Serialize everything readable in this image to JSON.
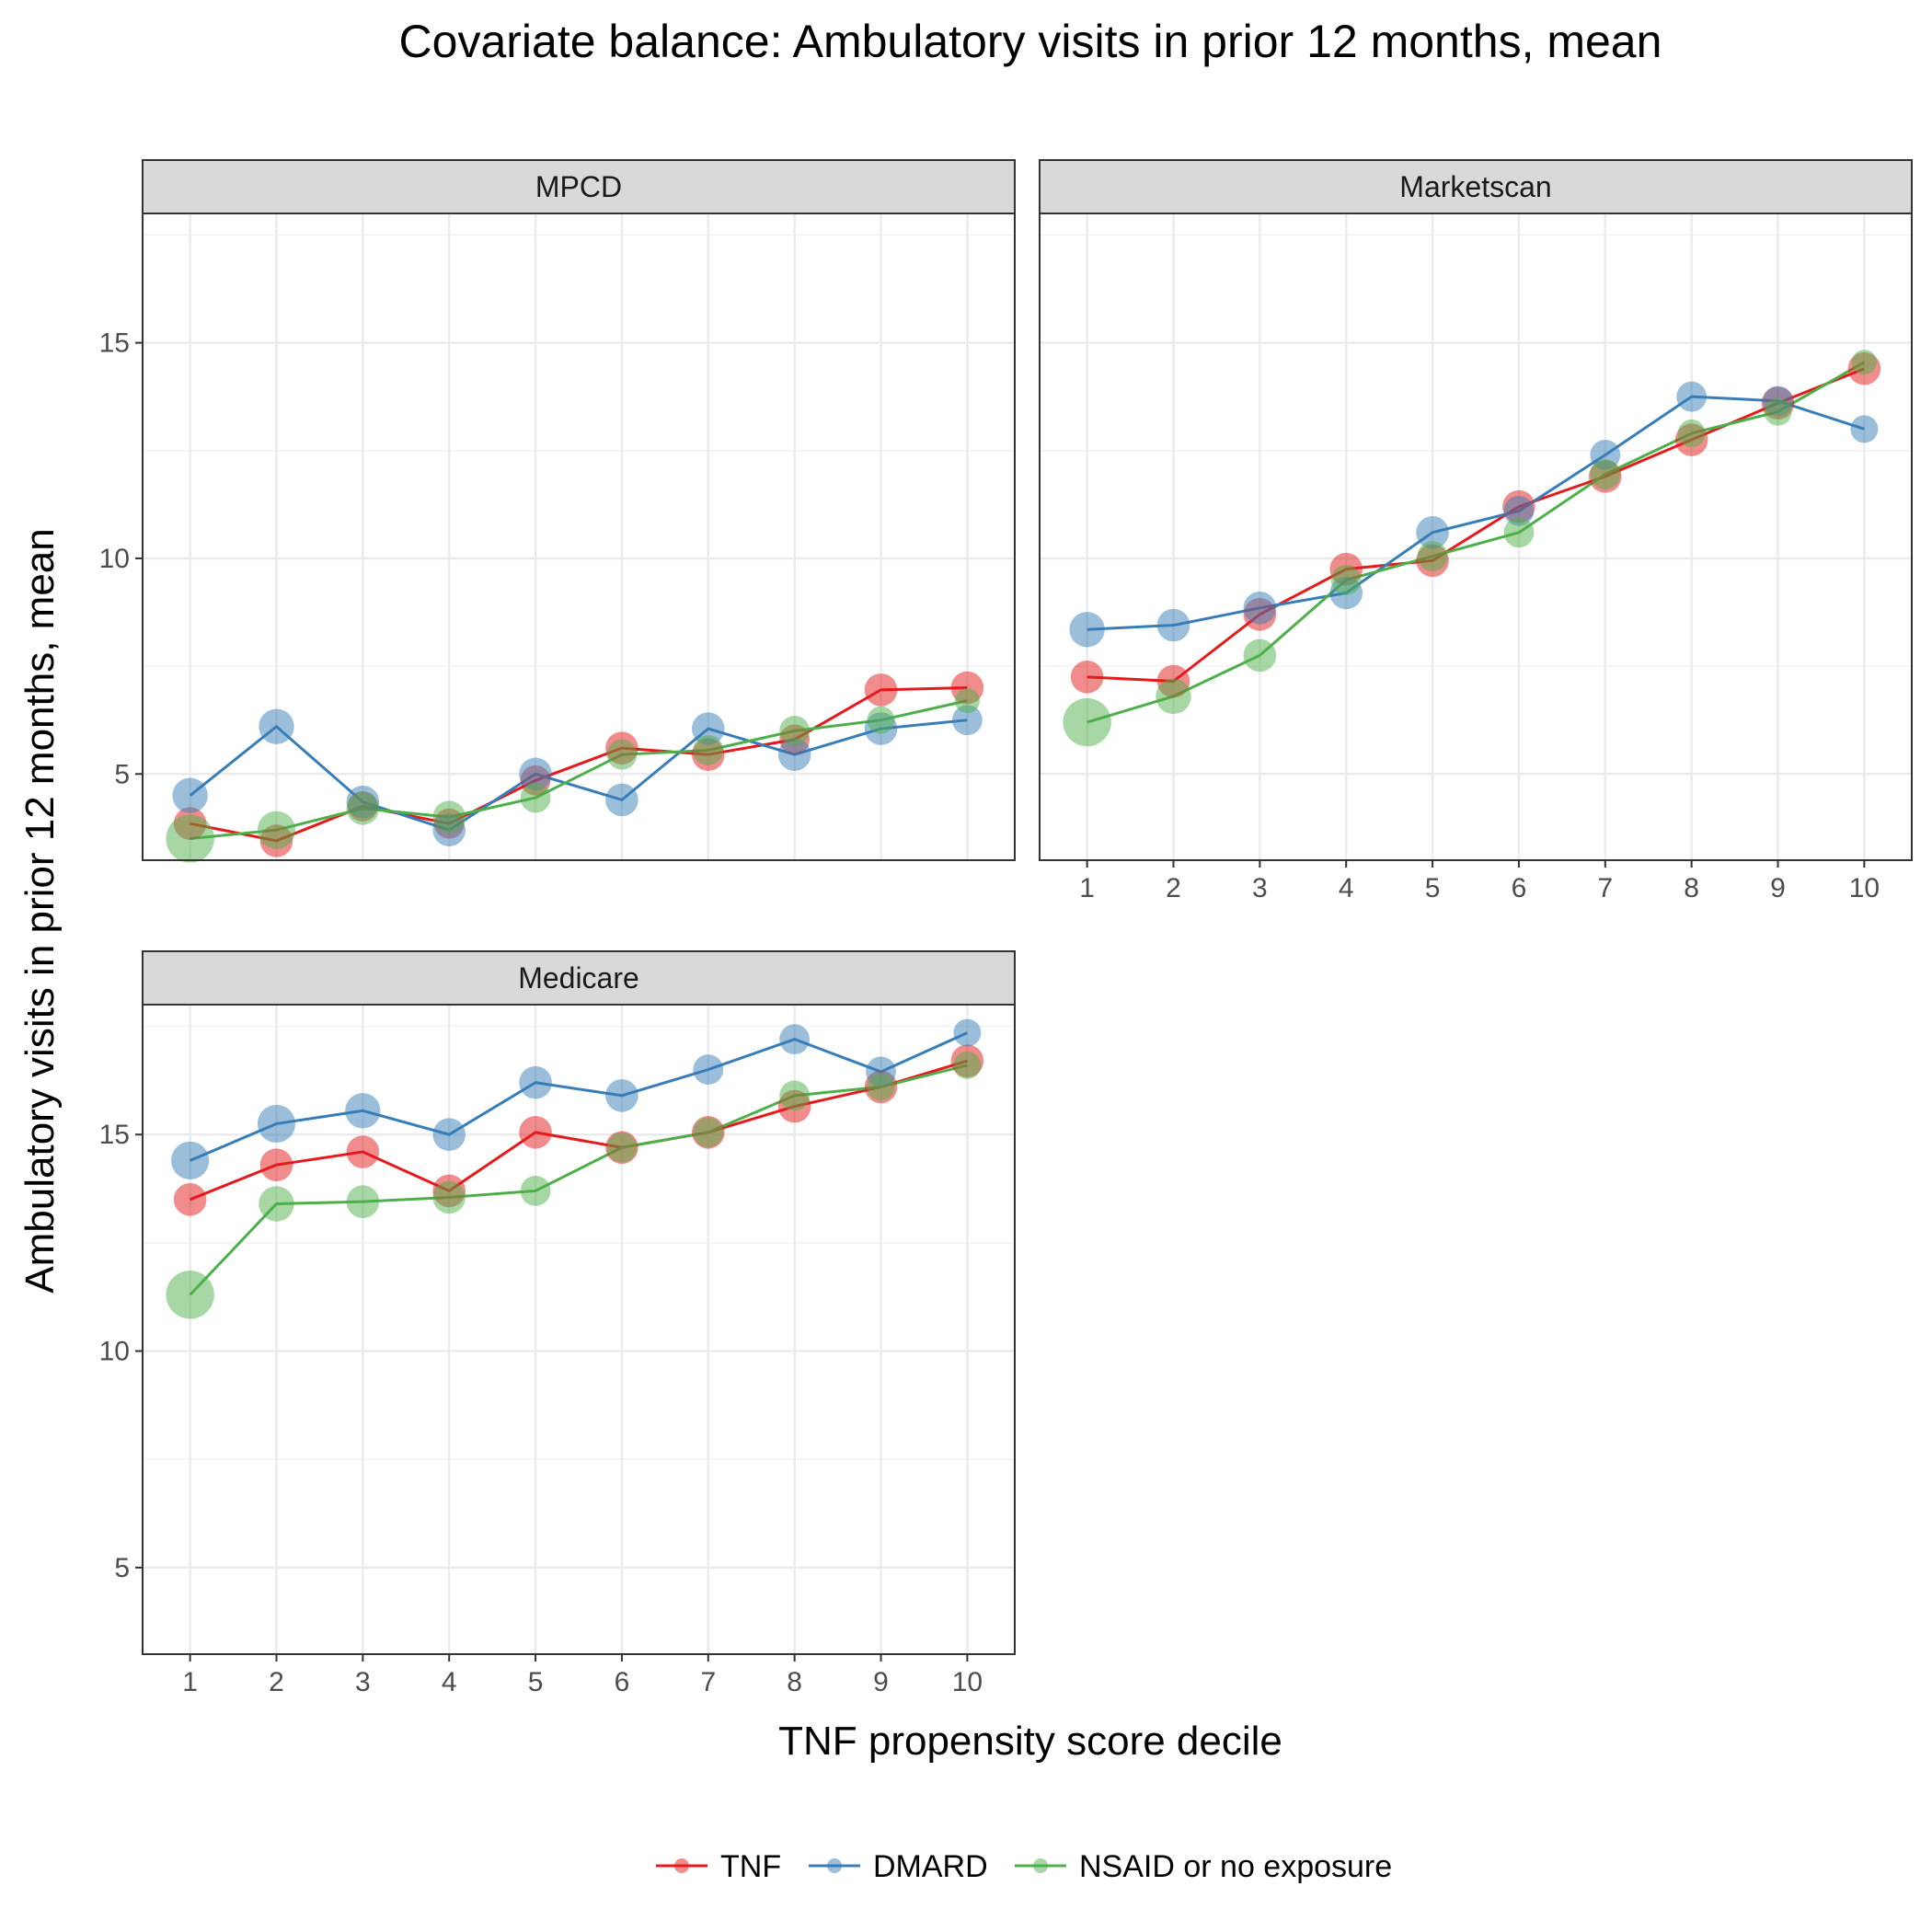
{
  "chart_data": {
    "type": "line",
    "title": "Covariate balance: Ambulatory visits in prior 12 months, mean",
    "xlabel": "TNF propensity score decile",
    "ylabel": "Ambulatory visits in prior 12 months, mean",
    "x": [
      1,
      2,
      3,
      4,
      5,
      6,
      7,
      8,
      9,
      10
    ],
    "xticks": [
      "1",
      "2",
      "3",
      "4",
      "5",
      "6",
      "7",
      "8",
      "9",
      "10"
    ],
    "yticks": [
      "5",
      "10",
      "15"
    ],
    "ylim": [
      3,
      18
    ],
    "grid": true,
    "legend_position": "bottom",
    "colors": {
      "TNF": "#e41a1c",
      "DMARD": "#377eb8",
      "NSAID or no exposure": "#4daf4a"
    },
    "legend": [
      "TNF",
      "DMARD",
      "NSAID or no exposure"
    ],
    "panels": [
      {
        "name": "MPCD",
        "series": [
          {
            "name": "TNF",
            "values": [
              3.85,
              3.45,
              4.25,
              3.85,
              4.85,
              5.6,
              5.45,
              5.8,
              6.95,
              7.0
            ],
            "sizes": [
              0.7,
              0.7,
              0.6,
              0.6,
              0.6,
              0.7,
              0.7,
              0.6,
              0.7,
              0.7
            ]
          },
          {
            "name": "DMARD",
            "values": [
              4.5,
              6.1,
              4.35,
              3.7,
              5.0,
              4.4,
              6.05,
              5.45,
              6.05,
              6.25
            ],
            "sizes": [
              0.8,
              0.8,
              0.7,
              0.7,
              0.7,
              0.7,
              0.7,
              0.7,
              0.7,
              0.6
            ]
          },
          {
            "name": "NSAID or no exposure",
            "values": [
              3.5,
              3.7,
              4.2,
              4.0,
              4.45,
              5.45,
              5.55,
              6.0,
              6.25,
              6.7
            ],
            "sizes": [
              1.3,
              0.9,
              0.7,
              0.7,
              0.6,
              0.6,
              0.6,
              0.6,
              0.5,
              0.4
            ]
          }
        ]
      },
      {
        "name": "Marketscan",
        "series": [
          {
            "name": "TNF",
            "values": [
              7.25,
              7.15,
              8.7,
              9.75,
              9.95,
              11.2,
              11.9,
              12.75,
              13.6,
              14.4
            ],
            "sizes": [
              0.7,
              0.7,
              0.7,
              0.7,
              0.7,
              0.7,
              0.7,
              0.7,
              0.7,
              0.7
            ]
          },
          {
            "name": "DMARD",
            "values": [
              8.35,
              8.45,
              8.85,
              9.2,
              10.6,
              11.1,
              12.4,
              13.75,
              13.65,
              13.0
            ],
            "sizes": [
              0.8,
              0.7,
              0.7,
              0.7,
              0.7,
              0.6,
              0.6,
              0.6,
              0.6,
              0.5
            ]
          },
          {
            "name": "NSAID or no exposure",
            "values": [
              6.2,
              6.8,
              7.75,
              9.5,
              10.05,
              10.6,
              11.95,
              12.9,
              13.4,
              14.55
            ],
            "sizes": [
              1.3,
              0.8,
              0.7,
              0.6,
              0.6,
              0.6,
              0.6,
              0.5,
              0.5,
              0.4
            ]
          }
        ]
      },
      {
        "name": "Medicare",
        "series": [
          {
            "name": "TNF",
            "values": [
              13.5,
              14.3,
              14.6,
              13.7,
              15.05,
              14.7,
              15.05,
              15.65,
              16.1,
              16.7
            ],
            "sizes": [
              0.7,
              0.7,
              0.7,
              0.7,
              0.7,
              0.7,
              0.7,
              0.7,
              0.7,
              0.7
            ]
          },
          {
            "name": "DMARD",
            "values": [
              14.4,
              15.25,
              15.55,
              15.0,
              16.2,
              15.9,
              16.5,
              17.2,
              16.45,
              17.35
            ],
            "sizes": [
              0.9,
              0.9,
              0.8,
              0.7,
              0.7,
              0.7,
              0.6,
              0.6,
              0.6,
              0.5
            ]
          },
          {
            "name": "NSAID or no exposure",
            "values": [
              11.3,
              13.4,
              13.45,
              13.55,
              13.7,
              14.7,
              15.05,
              15.9,
              16.1,
              16.6
            ],
            "sizes": [
              1.3,
              0.8,
              0.7,
              0.7,
              0.6,
              0.6,
              0.6,
              0.6,
              0.5,
              0.5
            ]
          }
        ]
      }
    ]
  }
}
